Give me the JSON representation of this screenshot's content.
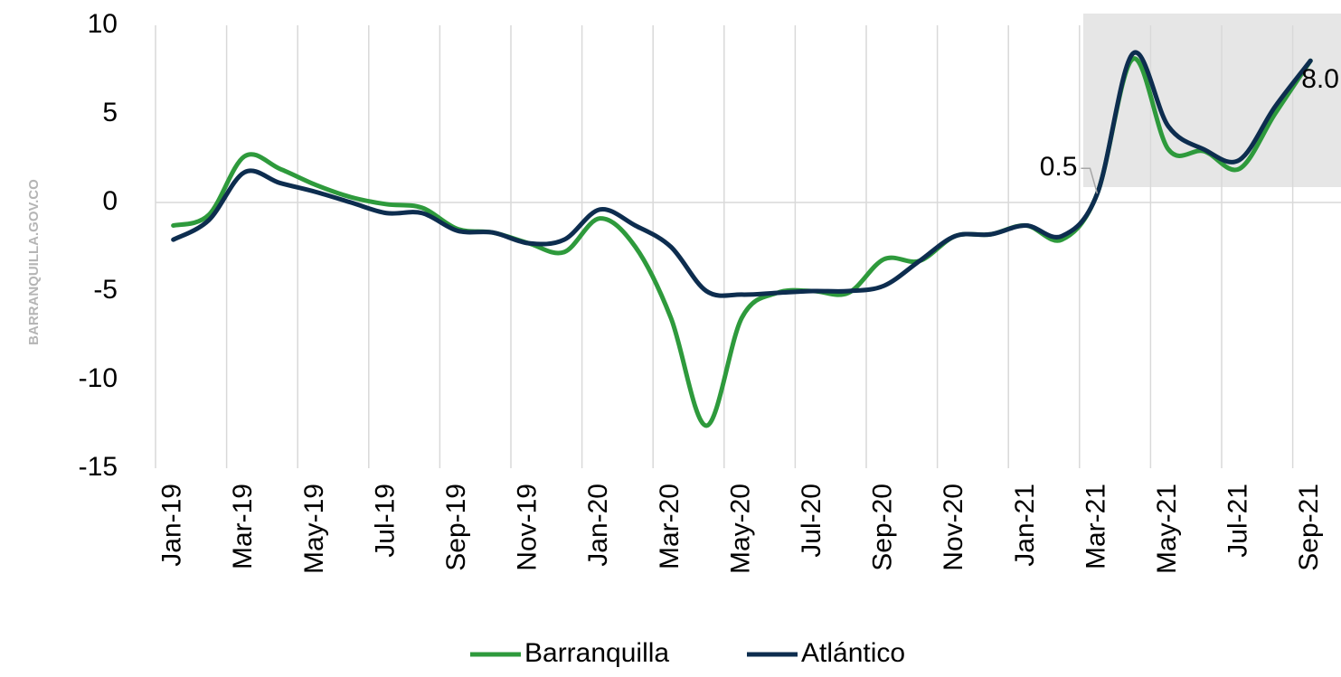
{
  "chart_data": {
    "type": "line",
    "watermark": "BARRANQUILLA.GOV.CO",
    "categories": [
      "Jan-19",
      null,
      "Mar-19",
      null,
      "May-19",
      null,
      "Jul-19",
      null,
      "Sep-19",
      null,
      "Nov-19",
      null,
      "Jan-20",
      null,
      "Mar-20",
      null,
      "May-20",
      null,
      "Jul-20",
      null,
      "Sep-20",
      null,
      "Nov-20",
      null,
      "Jan-21",
      null,
      "Mar-21",
      null,
      "May-21",
      null,
      "Jul-21",
      null,
      "Sep-21"
    ],
    "series": [
      {
        "name": "Barranquilla",
        "color": "#2e9a3c",
        "values": [
          -1.3,
          -0.7,
          2.6,
          1.9,
          1.0,
          0.3,
          -0.1,
          -0.3,
          -1.5,
          -1.7,
          -2.3,
          -2.8,
          -0.9,
          -2.5,
          -6.5,
          -12.6,
          -6.5,
          -5.1,
          -5.0,
          -5.1,
          -3.2,
          -3.3,
          -1.9,
          -1.8,
          -1.3,
          -2.1,
          0.5,
          8.1,
          3.0,
          2.9,
          1.9,
          5.0,
          8.0
        ]
      },
      {
        "name": "Atlántico",
        "color": "#0d2d4f",
        "values": [
          -2.1,
          -1.0,
          1.7,
          1.1,
          0.6,
          0.0,
          -0.6,
          -0.6,
          -1.6,
          -1.7,
          -2.3,
          -2.1,
          -0.4,
          -1.3,
          -2.5,
          -5.0,
          -5.2,
          -5.1,
          -5.0,
          -5.0,
          -4.7,
          -3.3,
          -1.9,
          -1.8,
          -1.3,
          -1.9,
          0.5,
          8.4,
          4.3,
          3.0,
          2.4,
          5.4,
          8.0
        ],
        "value_labels": [
          null,
          null,
          null,
          null,
          null,
          null,
          null,
          null,
          null,
          null,
          null,
          null,
          null,
          null,
          null,
          null,
          null,
          null,
          null,
          null,
          null,
          null,
          null,
          null,
          null,
          null,
          "0.5",
          null,
          null,
          null,
          null,
          null,
          "8.0"
        ]
      }
    ],
    "ylim": [
      -15,
      10
    ],
    "yticks": [
      10,
      5,
      0,
      -5,
      -10,
      -15
    ],
    "legend": "bottom"
  }
}
